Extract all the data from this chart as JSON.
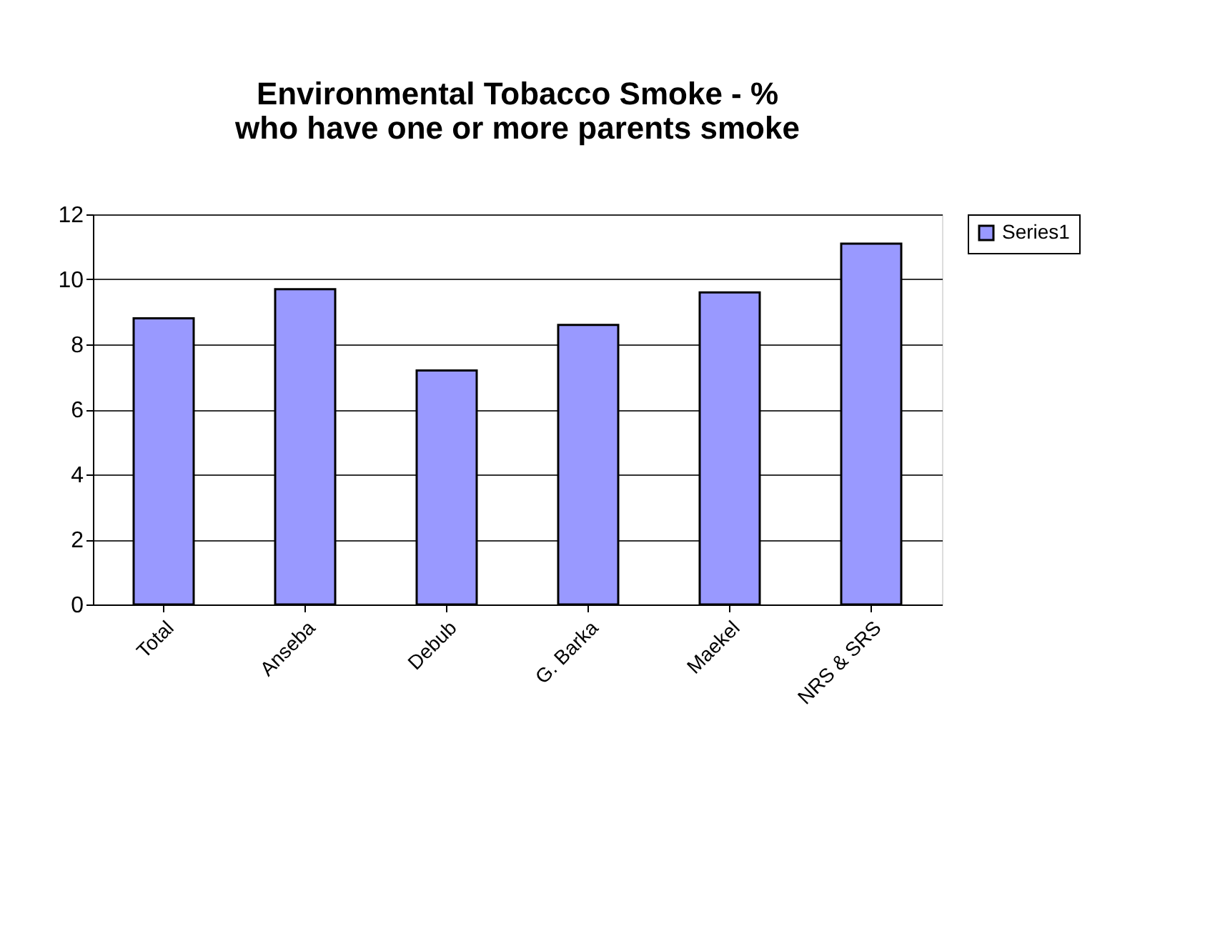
{
  "chart_data": {
    "type": "bar",
    "title": "Environmental Tobacco Smoke - % who have one or more parents smoke",
    "categories": [
      "Total",
      "Anseba",
      "Debub",
      "G. Barka",
      "Maekel",
      "NRS & SRS"
    ],
    "series": [
      {
        "name": "Series1",
        "color": "#9999ff",
        "values": [
          8.8,
          9.7,
          7.2,
          8.6,
          9.6,
          11.1
        ]
      }
    ],
    "ylim": [
      0,
      12
    ],
    "yticks": [
      0,
      2,
      4,
      6,
      8,
      10,
      12
    ],
    "grid": "y",
    "legend": "right"
  }
}
